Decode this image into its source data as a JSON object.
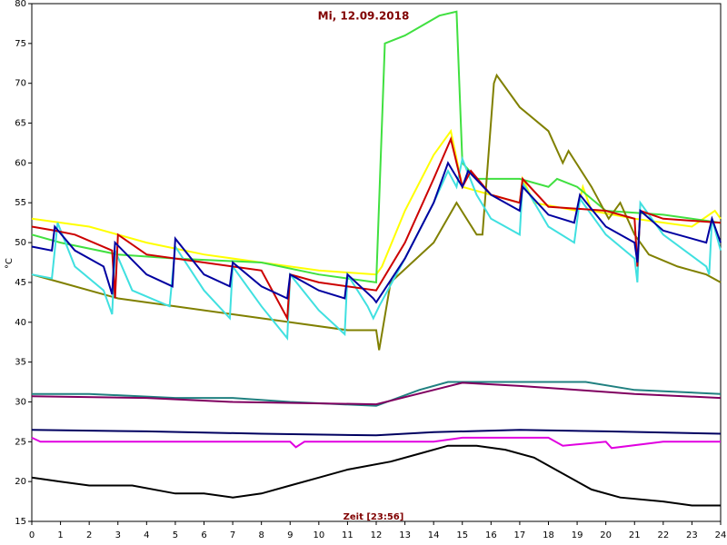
{
  "chart_data": {
    "type": "line",
    "title": "Mi, 12.09.2018",
    "xlabel": "Zeit [23:56]",
    "ylabel": "°C",
    "xlim": [
      0,
      24
    ],
    "ylim": [
      15,
      80
    ],
    "xticks": [
      0,
      1,
      2,
      3,
      4,
      5,
      6,
      7,
      8,
      9,
      10,
      11,
      12,
      13,
      14,
      15,
      16,
      17,
      18,
      19,
      20,
      21,
      22,
      23,
      24
    ],
    "yticks": [
      15,
      20,
      25,
      30,
      35,
      40,
      45,
      50,
      55,
      60,
      65,
      70,
      75,
      80
    ],
    "series": [
      {
        "color": "#ffff00",
        "x": [
          0,
          2,
          4,
          6,
          8,
          10,
          12,
          12.2,
          13,
          14,
          14.6,
          15,
          16,
          17,
          17.1,
          17.5,
          19,
          19.2,
          19.5,
          21,
          23,
          23.8,
          24
        ],
        "values": [
          53,
          52,
          50,
          48.5,
          47.5,
          46.5,
          46,
          47,
          54,
          61,
          64,
          57,
          56,
          55,
          58,
          55,
          54,
          57,
          54,
          53,
          52,
          54,
          53
        ]
      },
      {
        "color": "#40e040",
        "x": [
          0,
          1,
          3,
          5,
          8,
          10,
          12,
          12.3,
          13,
          14.2,
          14.8,
          15,
          15.5,
          17,
          18,
          18.3,
          19,
          20,
          22,
          24
        ],
        "values": [
          51,
          50,
          48.5,
          48,
          47.5,
          46,
          45,
          75,
          76,
          78.5,
          79,
          60,
          58,
          58,
          57,
          58,
          57,
          54,
          53.5,
          52.5
        ]
      },
      {
        "color": "#808000",
        "x": [
          0,
          1,
          3,
          5,
          7,
          9,
          11,
          12,
          12.1,
          12.5,
          14,
          14.8,
          15.5,
          15.7,
          16.1,
          16.2,
          17,
          18,
          18.5,
          18.7,
          19.5,
          20.1,
          20.5,
          21,
          21.5,
          22.5,
          23.5,
          24
        ],
        "values": [
          46,
          45,
          43,
          42,
          41,
          40,
          39,
          39,
          36.5,
          45,
          50,
          55,
          51,
          51,
          70,
          71,
          67,
          64,
          60,
          61.5,
          57,
          53,
          55,
          51,
          48.5,
          47,
          46,
          45
        ]
      },
      {
        "color": "#40e0e0",
        "x": [
          0,
          0.7,
          0.9,
          1.5,
          2.5,
          2.8,
          2.9,
          3.5,
          4.8,
          5,
          6,
          6.9,
          7,
          8,
          8.9,
          9,
          10,
          10.9,
          11,
          11.7,
          11.9,
          12.1,
          13,
          14,
          14.5,
          14.8,
          15,
          15.5,
          16,
          17,
          17.1,
          18,
          18.9,
          19.1,
          20,
          21,
          21.1,
          21.2,
          22,
          23.5,
          23.6,
          23.7,
          24
        ],
        "values": [
          46,
          45.5,
          52.5,
          47,
          44,
          41,
          49,
          44,
          42,
          49.5,
          44,
          40.5,
          47,
          42,
          38,
          46,
          41.5,
          38.5,
          46,
          42,
          40.5,
          42,
          48,
          55,
          59,
          57,
          60.5,
          56,
          53,
          51,
          57.5,
          52,
          50,
          55.5,
          51,
          48,
          45,
          55,
          51,
          47,
          46,
          53,
          49
        ]
      },
      {
        "color": "#cc0000",
        "x": [
          0,
          0.8,
          1.5,
          2.8,
          2.9,
          3,
          4,
          6,
          8,
          8.9,
          9,
          10,
          12,
          13,
          14,
          14.6,
          15,
          15.3,
          16,
          17,
          17.1,
          18,
          20,
          21,
          21.1,
          21.2,
          22,
          24
        ],
        "values": [
          52,
          51.5,
          51,
          49,
          43,
          51,
          48.5,
          47.5,
          46.5,
          40.5,
          46,
          45,
          44,
          50,
          58,
          63,
          57,
          59,
          56,
          55,
          58,
          54.5,
          54,
          53,
          47,
          54,
          53,
          52.5
        ]
      },
      {
        "color": "#0000a0",
        "x": [
          0,
          0.7,
          0.8,
          1.5,
          2.5,
          2.8,
          2.9,
          4,
          4.9,
          5,
          6,
          6.9,
          7,
          8,
          8.9,
          9,
          10,
          10.9,
          11,
          11.9,
          12,
          13,
          14,
          14.5,
          15,
          15.2,
          16,
          17,
          17.1,
          18,
          18.9,
          19.1,
          20,
          21,
          21.1,
          21.2,
          22,
          23.5,
          23.7,
          24
        ],
        "values": [
          49.5,
          49,
          52,
          49,
          47,
          43.5,
          50,
          46,
          44.5,
          50.5,
          46,
          44.5,
          47.5,
          44.5,
          43,
          46,
          44,
          43,
          46,
          43,
          42.5,
          48,
          55,
          60,
          57,
          59,
          56,
          54,
          57,
          53.5,
          52.5,
          56,
          52,
          50,
          47.5,
          54,
          51.5,
          50,
          53,
          50
        ]
      },
      {
        "color": "#208080",
        "x": [
          0,
          2,
          5,
          7,
          9,
          12,
          13.5,
          14.5,
          19,
          19.3,
          21,
          24
        ],
        "values": [
          31,
          31,
          30.5,
          30.5,
          30,
          29.5,
          31.5,
          32.5,
          32.5,
          32.5,
          31.5,
          31
        ]
      },
      {
        "color": "#800060",
        "x": [
          0,
          4,
          7,
          12,
          14,
          15,
          17,
          19,
          21,
          24
        ],
        "values": [
          30.7,
          30.5,
          30,
          29.7,
          31.5,
          32.4,
          32,
          31.5,
          31,
          30.5
        ]
      },
      {
        "color": "#000060",
        "x": [
          0,
          4,
          8,
          12,
          14,
          17,
          20,
          24
        ],
        "values": [
          26.5,
          26.3,
          26,
          25.8,
          26.2,
          26.5,
          26.3,
          26
        ]
      },
      {
        "color": "#e000e0",
        "x": [
          0,
          0.3,
          9,
          9.2,
          9.5,
          14,
          15,
          18,
          18.5,
          20,
          20.2,
          22,
          24
        ],
        "values": [
          25.5,
          25,
          25,
          24.3,
          25,
          25,
          25.5,
          25.5,
          24.5,
          25,
          24.2,
          25,
          25
        ]
      },
      {
        "color": "#000000",
        "x": [
          0,
          1,
          2,
          3.5,
          5,
          6,
          7,
          8,
          9,
          10,
          11,
          12.5,
          13.5,
          14.5,
          15.5,
          16.5,
          17.5,
          18.5,
          19.5,
          20.5,
          22,
          23,
          24
        ],
        "values": [
          20.5,
          20,
          19.5,
          19.5,
          18.5,
          18.5,
          18,
          18.5,
          19.5,
          20.5,
          21.5,
          22.5,
          23.5,
          24.5,
          24.5,
          24,
          23,
          21,
          19,
          18,
          17.5,
          17,
          17
        ]
      }
    ]
  }
}
